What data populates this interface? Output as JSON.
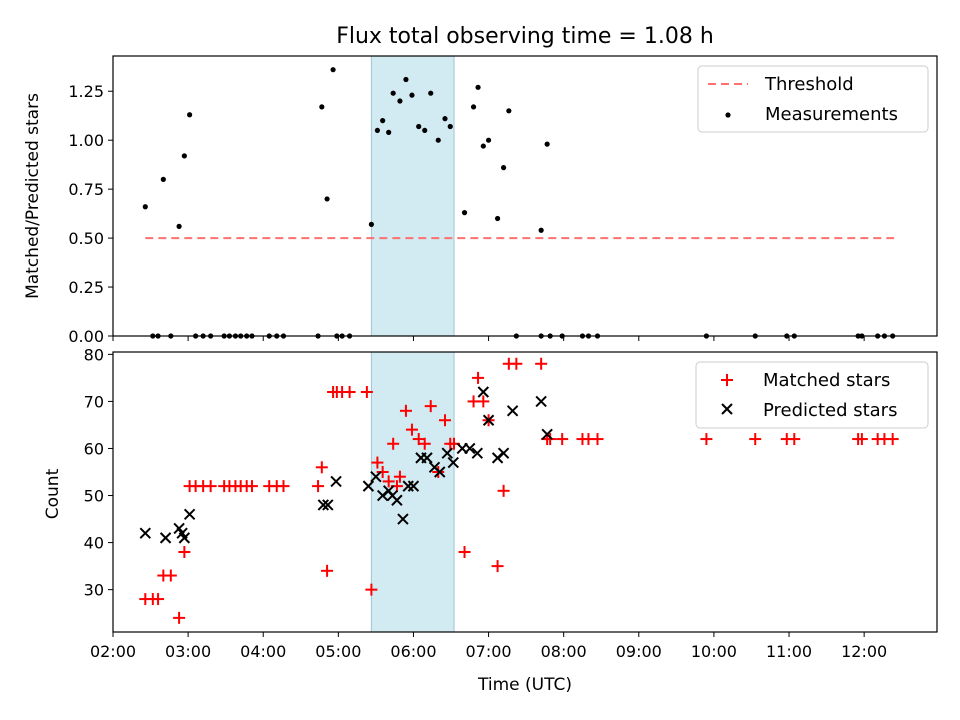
{
  "chart_data": [
    {
      "type": "scatter",
      "title": "Flux total observing time = 1.08 h",
      "xlabel": "",
      "ylabel": "Matched/Predicted stars",
      "xlim": [
        2.0,
        12.97
      ],
      "ylim": [
        0,
        1.43
      ],
      "yticks": [
        0.0,
        0.25,
        0.5,
        0.75,
        1.0,
        1.25
      ],
      "ytick_labels": [
        "0.00",
        "0.25",
        "0.50",
        "0.75",
        "1.00",
        "1.25"
      ],
      "highlight_span": {
        "start": 5.44,
        "end": 6.54,
        "color": "#add8e6"
      },
      "legend_position": "top-right",
      "threshold": {
        "name": "Threshold",
        "value": 0.5,
        "x_start": 2.43,
        "x_end": 12.4,
        "color": "#ff7070"
      },
      "series": [
        {
          "name": "Measurements",
          "color": "#000000",
          "x": [
            2.43,
            2.67,
            2.88,
            2.95,
            3.02,
            4.78,
            4.85,
            4.93,
            5.44,
            5.52,
            5.59,
            5.67,
            5.73,
            5.82,
            5.9,
            5.98,
            6.07,
            6.15,
            6.23,
            6.33,
            6.42,
            6.49,
            6.68,
            6.8,
            6.86,
            6.93,
            7.0,
            7.12,
            7.2,
            7.27,
            7.7,
            7.78,
            2.53,
            2.6,
            2.77,
            3.1,
            3.2,
            3.3,
            3.48,
            3.55,
            3.63,
            3.7,
            3.78,
            3.85,
            4.08,
            4.18,
            4.27,
            4.73,
            4.98,
            5.05,
            5.15,
            7.37,
            7.7,
            7.82,
            7.98,
            8.25,
            8.33,
            8.45,
            9.9,
            10.55,
            10.97,
            11.07,
            11.92,
            11.97,
            12.18,
            12.27,
            12.38
          ],
          "y": [
            0.66,
            0.8,
            0.56,
            0.92,
            1.13,
            1.17,
            0.7,
            1.36,
            0.57,
            1.05,
            1.1,
            1.04,
            1.24,
            1.2,
            1.31,
            1.23,
            1.07,
            1.05,
            1.24,
            1.0,
            1.11,
            1.07,
            0.63,
            1.17,
            1.27,
            0.97,
            1.0,
            0.6,
            0.86,
            1.15,
            0.54,
            0.98,
            0,
            0,
            0,
            0,
            0,
            0,
            0,
            0,
            0,
            0,
            0,
            0,
            0,
            0,
            0,
            0,
            0,
            0,
            0,
            0,
            0,
            0,
            0,
            0,
            0,
            0,
            0,
            0,
            0,
            0,
            0,
            0,
            0,
            0,
            0
          ]
        }
      ]
    },
    {
      "type": "scatter",
      "title": "",
      "xlabel": "Time (UTC)",
      "ylabel": "Count",
      "xlim": [
        2.0,
        12.97
      ],
      "ylim": [
        21,
        80.5
      ],
      "yticks": [
        30,
        40,
        50,
        60,
        70,
        80
      ],
      "ytick_labels": [
        "30",
        "40",
        "50",
        "60",
        "70",
        "80"
      ],
      "xticks": [
        2,
        3,
        4,
        5,
        6,
        7,
        8,
        9,
        10,
        11,
        12
      ],
      "xtick_labels": [
        "02:00",
        "03:00",
        "04:00",
        "05:00",
        "06:00",
        "07:00",
        "08:00",
        "09:00",
        "10:00",
        "11:00",
        "12:00"
      ],
      "highlight_span": {
        "start": 5.44,
        "end": 6.54,
        "color": "#add8e6"
      },
      "legend_position": "top-right",
      "series": [
        {
          "name": "Matched stars",
          "color": "#ff0000",
          "marker": "+",
          "x": [
            2.43,
            2.53,
            2.6,
            2.67,
            2.77,
            2.88,
            2.95,
            3.02,
            3.1,
            3.2,
            3.3,
            3.48,
            3.55,
            3.63,
            3.7,
            3.78,
            3.85,
            4.08,
            4.18,
            4.27,
            4.73,
            4.78,
            4.85,
            4.93,
            4.98,
            5.05,
            5.15,
            5.38,
            5.44,
            5.52,
            5.59,
            5.67,
            5.73,
            5.78,
            5.82,
            5.9,
            5.98,
            6.07,
            6.15,
            6.23,
            6.33,
            6.42,
            6.49,
            6.54,
            6.68,
            6.8,
            6.86,
            6.93,
            7.0,
            7.12,
            7.2,
            7.27,
            7.37,
            7.7,
            7.78,
            7.82,
            7.98,
            8.25,
            8.33,
            8.45,
            9.9,
            10.55,
            10.97,
            11.07,
            11.92,
            11.97,
            12.18,
            12.27,
            12.38
          ],
          "y": [
            28,
            28,
            28,
            33,
            33,
            24,
            38,
            52,
            52,
            52,
            52,
            52,
            52,
            52,
            52,
            52,
            52,
            52,
            52,
            52,
            52,
            56,
            34,
            72,
            72,
            72,
            72,
            72,
            30,
            57,
            55,
            53,
            61,
            52,
            54,
            68,
            64,
            62,
            61,
            69,
            55,
            66,
            61,
            61,
            38,
            70,
            75,
            70,
            66,
            35,
            51,
            78,
            78,
            78,
            62,
            62,
            62,
            62,
            62,
            62,
            62,
            62,
            62,
            62,
            62,
            62,
            62,
            62,
            62
          ]
        },
        {
          "name": "Predicted stars",
          "color": "#000000",
          "marker": "x",
          "x": [
            2.43,
            2.7,
            2.88,
            2.92,
            2.95,
            3.02,
            4.8,
            4.86,
            4.97,
            5.4,
            5.5,
            5.59,
            5.67,
            5.72,
            5.78,
            5.86,
            5.93,
            6.0,
            6.1,
            6.18,
            6.28,
            6.35,
            6.45,
            6.53,
            6.65,
            6.75,
            6.85,
            6.93,
            7.0,
            7.12,
            7.2,
            7.32,
            7.7,
            7.78
          ],
          "y": [
            42,
            41,
            43,
            42,
            41,
            46,
            48,
            48,
            53,
            52,
            54,
            50,
            51,
            50,
            49,
            45,
            52,
            52,
            58,
            58,
            56,
            55,
            59,
            57,
            60,
            60,
            59,
            72,
            66,
            58,
            59,
            68,
            70,
            63
          ]
        }
      ]
    }
  ]
}
